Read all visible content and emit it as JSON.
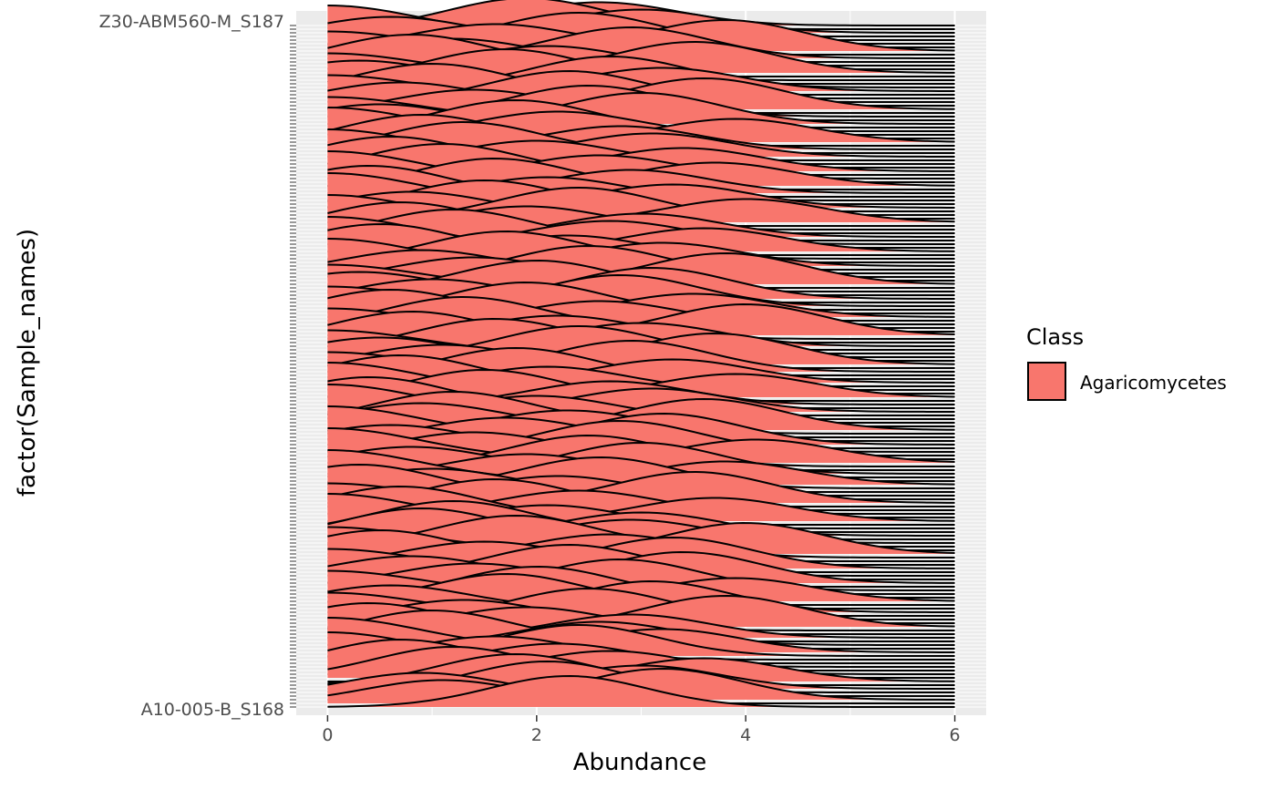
{
  "chart_data": {
    "type": "ridgeline",
    "xlabel": "Abundance",
    "ylabel": "factor(Sample_names)",
    "xlim": [
      -0.3,
      6.3
    ],
    "x_ticks": [
      0,
      2,
      4,
      6
    ],
    "x_tick_labels": [
      "0",
      "2",
      "4",
      "6"
    ],
    "grid": "on",
    "background": "#EBEBEB",
    "fill_color": "#F8766D",
    "legend": {
      "title": "Class",
      "entries": [
        {
          "label": "Agaricomycetes",
          "color": "#F8766D"
        }
      ],
      "position": "right"
    },
    "baselines": [
      2,
      4,
      6,
      8,
      10,
      12,
      14,
      16,
      18,
      20,
      22,
      24,
      26,
      28,
      30,
      32,
      34,
      36,
      38,
      40,
      42,
      44,
      46,
      48,
      50,
      52,
      54,
      56,
      58,
      60,
      62,
      64,
      66,
      68,
      70,
      72,
      74,
      76,
      78,
      80,
      82,
      84,
      86,
      88,
      90,
      92,
      94,
      96,
      98,
      100,
      102,
      104,
      106,
      108,
      110,
      112,
      114,
      116,
      118,
      120,
      122,
      124,
      126,
      128,
      130,
      132,
      134,
      136,
      138,
      140,
      142,
      144,
      146,
      148,
      150,
      152,
      154,
      156,
      158,
      160,
      162,
      164,
      166,
      168,
      170,
      172,
      174,
      176,
      178,
      180,
      182,
      184,
      186,
      188,
      190,
      192,
      194,
      196,
      198,
      200,
      202,
      204,
      206,
      208,
      210,
      212,
      214,
      216,
      218,
      220,
      222,
      224,
      226,
      228,
      230,
      232,
      234,
      236,
      238,
      240,
      242,
      244,
      246,
      248,
      250,
      252,
      254,
      256,
      258,
      260,
      262,
      264,
      266,
      268,
      270,
      272,
      274,
      276,
      278,
      280,
      282,
      284,
      286,
      288,
      290,
      292,
      294,
      296,
      298,
      300,
      302,
      304,
      306,
      308,
      310,
      312,
      314,
      316,
      318,
      320,
      322,
      324,
      326,
      328,
      330,
      332,
      334,
      336,
      338,
      340,
      342,
      344,
      346,
      348,
      350,
      352,
      354,
      356,
      358,
      360,
      362,
      364,
      366,
      368,
      370,
      372,
      374,
      376
    ],
    "series_count": 188,
    "sample_labels_visible": [
      "Z30-ABM560-M_S187",
      "A10-005-B_S168"
    ],
    "distribution_centers": [
      2.3,
      1.1,
      3.2,
      0.9,
      2.1,
      3.0,
      1.8,
      3.6,
      1.2,
      2.7,
      0.7,
      2.2,
      0.0,
      1.6,
      2.4,
      3.2,
      0.0,
      2.6,
      1.0,
      2.9,
      0.4,
      1.9,
      3.8,
      1.3,
      2.5,
      0.0,
      3.1,
      0.6,
      1.7,
      3.9,
      2.0,
      0.0,
      2.8,
      1.4,
      3.4,
      0.8,
      2.3,
      0.0,
      3.3,
      1.5,
      0.5,
      2.7,
      4.0,
      0.0,
      1.8,
      2.9,
      0.9,
      3.0,
      1.2,
      2.1,
      0.0,
      3.7,
      0.7,
      2.4,
      1.6,
      0.0,
      3.5,
      2.2,
      0.3,
      1.0,
      2.6,
      3.8,
      0.0,
      1.9,
      3.0,
      0.8,
      2.5,
      4.1,
      0.0,
      1.4,
      2.8,
      0.6,
      3.2,
      1.7,
      0.0,
      2.3,
      3.6,
      0.9,
      1.2,
      2.0,
      0.0,
      3.1,
      0.4,
      2.7,
      1.5,
      3.9,
      0.0,
      2.1,
      0.7,
      3.3,
      1.8,
      0.0,
      2.9,
      1.1,
      3.7,
      0.5,
      2.4,
      0.0,
      1.6,
      3.0,
      0.8,
      2.2,
      4.0,
      0.0,
      1.3,
      2.6,
      0.6,
      3.5,
      1.9,
      0.0,
      2.8,
      1.0,
      3.1,
      0.3,
      2.0,
      0.0,
      3.8,
      1.4,
      2.5,
      0.9,
      0.0,
      3.2,
      1.7,
      2.3,
      0.5,
      3.6,
      0.0,
      2.7,
      1.2,
      3.0,
      0.7,
      1.9,
      0.0,
      4.0,
      2.4,
      0.8,
      1.5,
      3.3,
      0.0,
      2.1,
      0.4,
      2.9,
      1.6,
      3.7,
      0.0,
      2.6,
      1.1,
      3.4,
      0.6,
      2.0,
      0.0,
      3.1,
      1.3,
      2.8,
      0.9,
      3.9,
      0.0,
      2.2,
      1.8,
      0.5,
      3.0,
      0.0,
      2.5,
      1.4,
      3.6,
      0.7,
      2.3,
      0.0,
      1.0,
      3.2,
      2.7,
      0.3,
      1.7,
      0.0,
      3.5,
      2.1,
      0.8,
      1.2,
      2.9,
      0.0,
      3.8,
      1.6,
      2.4,
      0.6,
      0.0,
      3.0,
      1.9,
      2.6
    ]
  }
}
